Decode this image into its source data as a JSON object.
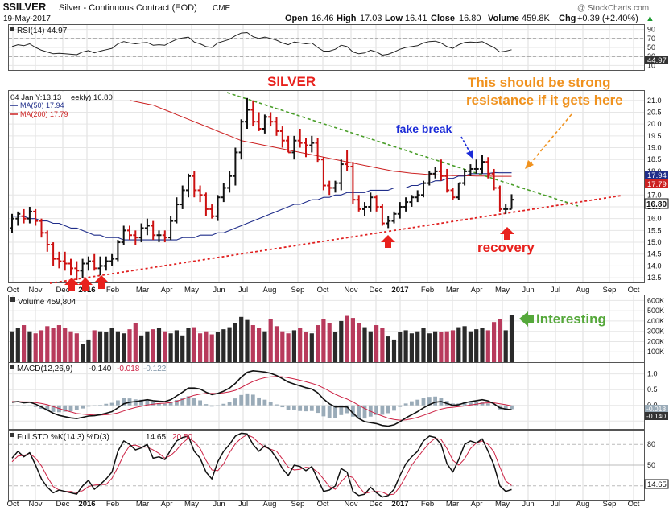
{
  "header": {
    "symbol": "$SILVER",
    "name": "Silver - Continuous Contract (EOD)",
    "exchange": "CME",
    "date": "19-May-2017",
    "watermark": "@ StockCharts.com",
    "open_label": "Open",
    "open": "16.46",
    "high_label": "High",
    "high": "17.03",
    "low_label": "Low",
    "low": "16.41",
    "close_label": "Close",
    "close": "16.80",
    "volume_label": "Volume",
    "volume": "459.8K",
    "chg_label": "Chg",
    "chg": "+0.39 (+2.40%)",
    "chg_symbol": "▲"
  },
  "rsi": {
    "label": "RSI(14) 44.97",
    "ticks": [
      "90",
      "70",
      "50",
      "30",
      "10"
    ],
    "current": "44.97",
    "line_color": "#222222"
  },
  "price": {
    "legend_weekly": "04 Jan Y:13.13",
    "legend_weekly_suffix": "eekly) 16.80",
    "legend_ma50": "MA(50) 17.94",
    "legend_ma200": "MA(200) 17.79",
    "ticks": [
      "21.0",
      "20.5",
      "20.0",
      "19.5",
      "19.0",
      "18.5",
      "18.0",
      "17.5",
      "17.0",
      "16.5",
      "16.0",
      "15.5",
      "15.0",
      "14.5",
      "14.0",
      "13.5"
    ],
    "tag_ma50": "17.94",
    "tag_ma200": "17.79",
    "tag_close": "16.80",
    "ma50_color": "#1f2d8a",
    "ma200_color": "#cc2222",
    "up_color": "#111111",
    "down_color": "#cc1111"
  },
  "annotations": {
    "title": "SILVER",
    "resistance_note_line1": "This should be strong",
    "resistance_note_line2": "resistance if it gets here",
    "fake_break": "fake break",
    "recovery": "recovery",
    "interesting": "Interesting",
    "title_color": "#e8211d",
    "resistance_color": "#f0921e",
    "fake_break_color": "#1b2bd8",
    "interesting_color": "#55a83a"
  },
  "xaxis": {
    "labels": [
      "Oct",
      "Nov",
      "Dec",
      "2016",
      "Feb",
      "Mar",
      "Apr",
      "May",
      "Jun",
      "Jul",
      "Aug",
      "Sep",
      "Oct",
      "Nov",
      "Dec",
      "2017",
      "Feb",
      "Mar",
      "Apr",
      "May",
      "Jun",
      "Jul",
      "Aug",
      "Sep",
      "Oct"
    ],
    "bold": [
      "2016",
      "2017"
    ]
  },
  "volume": {
    "label": "Volume 459,804",
    "ticks": [
      "600K",
      "500K",
      "400K",
      "300K",
      "200K",
      "100K"
    ],
    "current": "459804"
  },
  "macd": {
    "label_prefix": "MACD(12,26,9)",
    "macd_val": "-0.140",
    "signal_val": "-0.018",
    "hist_val": "-0.122",
    "ticks": [
      "1.0",
      "0.5",
      "0.0",
      "-0.5"
    ],
    "tag_a": "-0.018",
    "tag_b": "-0.140",
    "macd_color": "#111111",
    "signal_color": "#cc2244",
    "hist_color": "#9aabb8"
  },
  "sto": {
    "label_prefix": "Full STO %K(14,3) %D(3)",
    "k_val": "14.65",
    "d_val": "20.50",
    "ticks": [
      "80",
      "50",
      "20"
    ],
    "tag": "14.65",
    "k_color": "#111111",
    "d_color": "#cc2244"
  },
  "chart_data": {
    "type": "ohlc",
    "title": "SILVER",
    "frequency": "weekly",
    "xlabel": "",
    "ylabel": "",
    "ylim": [
      13.3,
      21.4
    ],
    "x": [
      "2015-10-02",
      "2015-10-09",
      "2015-10-16",
      "2015-10-23",
      "2015-10-30",
      "2015-11-06",
      "2015-11-13",
      "2015-11-20",
      "2015-11-27",
      "2015-12-04",
      "2015-12-11",
      "2015-12-18",
      "2015-12-25",
      "2016-01-01",
      "2016-01-08",
      "2016-01-15",
      "2016-01-22",
      "2016-01-29",
      "2016-02-05",
      "2016-02-12",
      "2016-02-19",
      "2016-02-26",
      "2016-03-04",
      "2016-03-11",
      "2016-03-18",
      "2016-03-25",
      "2016-04-01",
      "2016-04-08",
      "2016-04-15",
      "2016-04-22",
      "2016-04-29",
      "2016-05-06",
      "2016-05-13",
      "2016-05-20",
      "2016-05-27",
      "2016-06-03",
      "2016-06-10",
      "2016-06-17",
      "2016-06-24",
      "2016-07-01",
      "2016-07-08",
      "2016-07-15",
      "2016-07-22",
      "2016-07-29",
      "2016-08-05",
      "2016-08-12",
      "2016-08-19",
      "2016-08-26",
      "2016-09-02",
      "2016-09-09",
      "2016-09-16",
      "2016-09-23",
      "2016-09-30",
      "2016-10-07",
      "2016-10-14",
      "2016-10-21",
      "2016-10-28",
      "2016-11-04",
      "2016-11-11",
      "2016-11-18",
      "2016-11-25",
      "2016-12-02",
      "2016-12-09",
      "2016-12-16",
      "2016-12-23",
      "2016-12-30",
      "2017-01-06",
      "2017-01-13",
      "2017-01-20",
      "2017-01-27",
      "2017-02-03",
      "2017-02-10",
      "2017-02-17",
      "2017-02-24",
      "2017-03-03",
      "2017-03-10",
      "2017-03-17",
      "2017-03-24",
      "2017-03-31",
      "2017-04-07",
      "2017-04-14",
      "2017-04-21",
      "2017-04-28",
      "2017-05-05",
      "2017-05-12",
      "2017-05-19"
    ],
    "open": [
      15.6,
      16.0,
      16.1,
      16.0,
      16.3,
      15.9,
      15.4,
      14.9,
      14.3,
      14.2,
      14.1,
      13.9,
      13.8,
      14.1,
      14.2,
      13.9,
      14.0,
      14.2,
      14.3,
      15.0,
      15.5,
      15.3,
      15.2,
      15.6,
      15.7,
      15.3,
      15.3,
      15.2,
      15.9,
      16.6,
      17.2,
      17.8,
      17.2,
      17.0,
      16.4,
      16.1,
      16.9,
      17.3,
      17.8,
      18.8,
      20.1,
      20.6,
      20.1,
      19.8,
      20.3,
      20.1,
      19.7,
      19.3,
      18.8,
      19.3,
      19.2,
      19.1,
      19.2,
      18.5,
      17.4,
      17.3,
      17.5,
      18.3,
      18.2,
      16.8,
      16.4,
      16.5,
      16.9,
      16.5,
      15.8,
      15.9,
      16.2,
      16.5,
      16.7,
      16.9,
      17.0,
      17.5,
      17.9,
      18.0,
      17.8,
      17.2,
      16.9,
      17.5,
      18.0,
      18.1,
      18.1,
      18.4,
      17.9,
      17.3,
      16.4,
      16.4
    ],
    "high": [
      16.2,
      16.3,
      16.4,
      16.5,
      16.4,
      16.0,
      15.5,
      15.0,
      14.6,
      14.6,
      14.3,
      14.2,
      14.3,
      14.4,
      14.5,
      14.4,
      14.4,
      14.5,
      15.1,
      15.7,
      15.7,
      15.5,
      15.8,
      16.0,
      15.9,
      15.5,
      15.5,
      16.1,
      16.9,
      17.4,
      17.9,
      18.0,
      17.4,
      17.1,
      16.6,
      17.0,
      17.5,
      18.0,
      19.0,
      20.2,
      21.1,
      21.0,
      20.5,
      20.4,
      20.5,
      20.3,
      19.9,
      19.5,
      19.5,
      19.8,
      19.4,
      19.5,
      19.4,
      18.6,
      17.6,
      17.6,
      18.5,
      18.9,
      18.4,
      17.0,
      16.7,
      17.1,
      17.0,
      16.6,
      16.1,
      16.3,
      16.7,
      16.9,
      17.0,
      17.2,
      17.6,
      18.0,
      18.2,
      18.5,
      18.1,
      17.3,
      17.5,
      18.1,
      18.3,
      18.5,
      18.7,
      18.6,
      18.1,
      17.4,
      16.6,
      17.03
    ],
    "low": [
      15.4,
      15.7,
      15.8,
      15.8,
      15.7,
      15.2,
      14.6,
      14.0,
      13.9,
      13.8,
      13.6,
      13.4,
      13.5,
      13.8,
      13.8,
      13.6,
      13.8,
      14.0,
      14.2,
      14.9,
      15.1,
      14.9,
      15.0,
      15.3,
      15.1,
      15.0,
      15.0,
      15.1,
      15.8,
      16.4,
      16.9,
      16.9,
      16.7,
      16.1,
      16.0,
      15.9,
      16.7,
      17.1,
      17.4,
      18.5,
      19.8,
      19.9,
      19.7,
      19.6,
      19.9,
      19.5,
      19.0,
      18.8,
      18.5,
      19.0,
      18.6,
      18.8,
      18.4,
      17.2,
      17.0,
      17.1,
      17.2,
      18.0,
      16.6,
      16.3,
      16.1,
      16.3,
      16.3,
      15.7,
      15.6,
      15.8,
      16.0,
      16.3,
      16.5,
      16.7,
      16.9,
      17.4,
      17.7,
      17.6,
      17.1,
      16.8,
      16.8,
      17.4,
      17.8,
      17.9,
      17.9,
      17.7,
      17.2,
      16.3,
      16.2,
      16.41
    ],
    "close": [
      16.0,
      16.2,
      16.0,
      16.3,
      15.9,
      15.4,
      14.9,
      14.3,
      14.2,
      14.1,
      13.9,
      13.8,
      14.1,
      14.2,
      13.9,
      14.0,
      14.2,
      14.3,
      15.0,
      15.5,
      15.3,
      15.2,
      15.6,
      15.7,
      15.3,
      15.3,
      15.2,
      15.9,
      16.6,
      17.2,
      17.8,
      17.2,
      17.0,
      16.4,
      16.1,
      16.9,
      17.3,
      17.8,
      18.8,
      20.1,
      20.6,
      20.1,
      19.8,
      20.3,
      20.1,
      19.7,
      19.3,
      18.8,
      19.3,
      19.2,
      19.1,
      19.2,
      18.5,
      17.4,
      17.3,
      17.5,
      18.3,
      18.2,
      16.8,
      16.4,
      16.5,
      16.9,
      16.5,
      15.8,
      15.9,
      16.2,
      16.5,
      16.7,
      16.9,
      17.0,
      17.5,
      17.9,
      18.0,
      17.8,
      17.2,
      16.9,
      17.5,
      18.0,
      18.1,
      18.1,
      18.4,
      17.9,
      17.3,
      16.4,
      16.4,
      16.8
    ],
    "ma50": [
      16.1,
      16.1,
      16.1,
      16.0,
      16.0,
      15.9,
      15.9,
      15.8,
      15.8,
      15.7,
      15.6,
      15.6,
      15.5,
      15.4,
      15.3,
      15.3,
      15.2,
      15.2,
      15.2,
      15.1,
      15.1,
      15.1,
      15.1,
      15.1,
      15.1,
      15.1,
      15.1,
      15.1,
      15.1,
      15.2,
      15.2,
      15.2,
      15.3,
      15.3,
      15.3,
      15.4,
      15.4,
      15.5,
      15.6,
      15.7,
      15.8,
      15.9,
      16.0,
      16.1,
      16.2,
      16.3,
      16.4,
      16.5,
      16.6,
      16.6,
      16.7,
      16.8,
      16.8,
      16.9,
      16.9,
      17.0,
      17.0,
      17.1,
      17.1,
      17.1,
      17.1,
      17.2,
      17.2,
      17.2,
      17.2,
      17.3,
      17.3,
      17.3,
      17.4,
      17.4,
      17.5,
      17.5,
      17.6,
      17.6,
      17.7,
      17.7,
      17.8,
      17.8,
      17.9,
      17.9,
      17.9,
      17.9,
      17.95,
      17.94,
      17.94,
      17.94
    ],
    "ma200": [
      null,
      null,
      null,
      null,
      null,
      null,
      null,
      null,
      null,
      null,
      null,
      null,
      null,
      null,
      null,
      null,
      null,
      null,
      null,
      null,
      21.0,
      20.95,
      20.9,
      20.85,
      20.8,
      20.7,
      20.6,
      20.5,
      20.4,
      20.3,
      20.2,
      20.1,
      20.0,
      19.9,
      19.8,
      19.7,
      19.6,
      19.5,
      19.4,
      19.3,
      19.25,
      19.2,
      19.15,
      19.1,
      19.05,
      19.0,
      18.95,
      18.9,
      18.85,
      18.8,
      18.75,
      18.7,
      18.65,
      18.6,
      18.55,
      18.5,
      18.45,
      18.4,
      18.35,
      18.3,
      18.25,
      18.2,
      18.15,
      18.1,
      18.05,
      18.0,
      17.98,
      17.95,
      17.92,
      17.9,
      17.88,
      17.86,
      17.85,
      17.84,
      17.83,
      17.82,
      17.82,
      17.81,
      17.81,
      17.8,
      17.8,
      17.8,
      17.79,
      17.79,
      17.79,
      17.79
    ],
    "rsi": [
      52,
      56,
      54,
      58,
      50,
      44,
      40,
      36,
      37,
      36,
      35,
      34,
      40,
      43,
      38,
      42,
      45,
      48,
      58,
      63,
      60,
      58,
      60,
      61,
      55,
      56,
      55,
      62,
      68,
      71,
      73,
      62,
      58,
      52,
      50,
      60,
      64,
      68,
      76,
      82,
      83,
      74,
      70,
      73,
      70,
      66,
      60,
      56,
      62,
      60,
      58,
      60,
      50,
      42,
      42,
      46,
      55,
      52,
      40,
      36,
      38,
      44,
      40,
      33,
      35,
      40,
      46,
      50,
      52,
      54,
      60,
      63,
      64,
      60,
      52,
      48,
      56,
      61,
      62,
      61,
      63,
      56,
      50,
      40,
      42,
      44.97
    ],
    "volume": [
      300,
      330,
      360,
      300,
      280,
      310,
      350,
      330,
      360,
      330,
      300,
      280,
      180,
      220,
      310,
      300,
      290,
      330,
      300,
      280,
      320,
      380,
      260,
      300,
      320,
      330,
      300,
      280,
      310,
      260,
      330,
      340,
      280,
      300,
      270,
      290,
      320,
      340,
      380,
      440,
      410,
      360,
      330,
      300,
      420,
      350,
      300,
      280,
      310,
      330,
      290,
      280,
      360,
      420,
      380,
      290,
      400,
      450,
      430,
      380,
      340,
      300,
      360,
      330,
      250,
      220,
      290,
      310,
      280,
      300,
      330,
      280,
      300,
      290,
      300,
      310,
      340,
      350,
      300,
      320,
      330,
      310,
      390,
      420,
      310,
      459.804
    ],
    "macd": [
      0.1,
      0.12,
      0.08,
      0.1,
      0.04,
      -0.05,
      -0.15,
      -0.25,
      -0.32,
      -0.36,
      -0.4,
      -0.42,
      -0.38,
      -0.34,
      -0.33,
      -0.3,
      -0.25,
      -0.2,
      -0.08,
      0.05,
      0.1,
      0.12,
      0.15,
      0.18,
      0.15,
      0.13,
      0.12,
      0.18,
      0.3,
      0.42,
      0.55,
      0.55,
      0.52,
      0.42,
      0.34,
      0.38,
      0.45,
      0.55,
      0.7,
      0.9,
      1.05,
      1.1,
      1.08,
      1.06,
      1.02,
      0.95,
      0.85,
      0.74,
      0.68,
      0.62,
      0.56,
      0.52,
      0.4,
      0.2,
      0.05,
      -0.05,
      -0.04,
      -0.05,
      -0.25,
      -0.42,
      -0.52,
      -0.55,
      -0.58,
      -0.64,
      -0.66,
      -0.62,
      -0.52,
      -0.4,
      -0.3,
      -0.2,
      -0.08,
      0.02,
      0.1,
      0.12,
      0.06,
      0.0,
      0.02,
      0.08,
      0.12,
      0.15,
      0.18,
      0.14,
      0.05,
      -0.08,
      -0.12,
      -0.14
    ],
    "macd_signal": [
      0.12,
      0.12,
      0.11,
      0.11,
      0.09,
      0.06,
      0.02,
      -0.04,
      -0.1,
      -0.16,
      -0.21,
      -0.26,
      -0.28,
      -0.3,
      -0.31,
      -0.31,
      -0.3,
      -0.28,
      -0.24,
      -0.18,
      -0.12,
      -0.07,
      -0.03,
      0.01,
      0.04,
      0.06,
      0.07,
      0.09,
      0.13,
      0.19,
      0.26,
      0.32,
      0.36,
      0.38,
      0.38,
      0.38,
      0.4,
      0.43,
      0.48,
      0.57,
      0.67,
      0.76,
      0.83,
      0.88,
      0.91,
      0.92,
      0.91,
      0.88,
      0.84,
      0.8,
      0.75,
      0.7,
      0.64,
      0.55,
      0.45,
      0.35,
      0.27,
      0.2,
      0.11,
      0.0,
      -0.1,
      -0.19,
      -0.27,
      -0.34,
      -0.41,
      -0.45,
      -0.47,
      -0.46,
      -0.43,
      -0.38,
      -0.32,
      -0.25,
      -0.18,
      -0.12,
      -0.08,
      -0.06,
      -0.04,
      -0.02,
      0.01,
      0.04,
      0.07,
      0.08,
      0.08,
      0.05,
      0.02,
      -0.018
    ],
    "sto_k": [
      60,
      70,
      62,
      68,
      50,
      30,
      18,
      10,
      14,
      12,
      10,
      8,
      20,
      28,
      15,
      22,
      30,
      40,
      70,
      85,
      80,
      72,
      75,
      80,
      60,
      62,
      58,
      72,
      85,
      90,
      92,
      70,
      60,
      40,
      30,
      55,
      70,
      80,
      92,
      96,
      95,
      80,
      70,
      78,
      72,
      60,
      45,
      35,
      50,
      48,
      42,
      48,
      30,
      12,
      14,
      20,
      45,
      40,
      12,
      6,
      8,
      18,
      10,
      4,
      6,
      15,
      35,
      52,
      62,
      70,
      85,
      92,
      90,
      80,
      52,
      40,
      58,
      80,
      85,
      82,
      88,
      70,
      50,
      20,
      12,
      14.65
    ],
    "sto_d": [
      55,
      63,
      64,
      67,
      60,
      49,
      33,
      19,
      14,
      12,
      12,
      10,
      13,
      19,
      21,
      22,
      22,
      31,
      47,
      65,
      78,
      79,
      76,
      76,
      72,
      67,
      60,
      64,
      72,
      82,
      89,
      84,
      74,
      57,
      43,
      42,
      52,
      68,
      81,
      89,
      94,
      90,
      82,
      76,
      73,
      70,
      59,
      47,
      43,
      44,
      47,
      46,
      40,
      30,
      19,
      15,
      26,
      35,
      32,
      19,
      9,
      11,
      12,
      11,
      7,
      8,
      19,
      34,
      50,
      61,
      72,
      82,
      89,
      87,
      74,
      57,
      50,
      59,
      74,
      82,
      85,
      80,
      69,
      47,
      27,
      20.5
    ]
  }
}
